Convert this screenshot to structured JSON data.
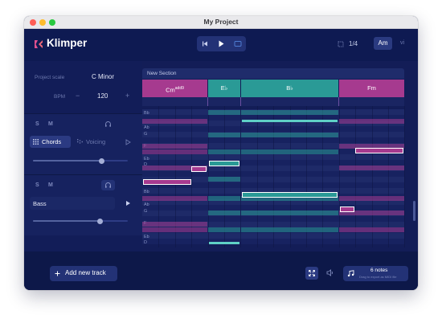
{
  "window": {
    "title": "My Project"
  },
  "app": {
    "name": "Klimper"
  },
  "transport": {
    "time_signature": "1/4"
  },
  "key": {
    "selected": "Am",
    "degree": "vi"
  },
  "project": {
    "scale_label": "Project scale",
    "scale_value": "C Minor",
    "bpm_label": "BPM",
    "bpm_value": "120",
    "minus": "−",
    "plus": "+"
  },
  "chords_track": {
    "solo": "S",
    "mute": "M",
    "tab_chords": "Chords",
    "tab_voicing": "Voicing"
  },
  "bass_track": {
    "solo": "S",
    "mute": "M",
    "instrument": "Bass"
  },
  "section": {
    "name": "New Section"
  },
  "chords": [
    {
      "label": "Cm",
      "ext": "add9",
      "color": "#a63a8f"
    },
    {
      "label": "E♭",
      "ext": "",
      "color": "#2a9a96"
    },
    {
      "label": "B♭",
      "ext": "",
      "color": "#2a9a96"
    },
    {
      "label": "Fm",
      "ext": "",
      "color": "#a63a8f"
    }
  ],
  "note_labels": [
    "Bb",
    "Ab",
    "G",
    "F",
    "Eb",
    "D",
    "Bb",
    "Ab",
    "G",
    "F",
    "Eb",
    "D"
  ],
  "bottom": {
    "add_track": "Add new track",
    "notes_count": "6 notes",
    "notes_sub": "Drag to export as MIDI file"
  },
  "colors": {
    "accent": "#2b3a82",
    "magenta": "#a63a8f",
    "teal": "#2a9a96",
    "background": "#111c54"
  }
}
